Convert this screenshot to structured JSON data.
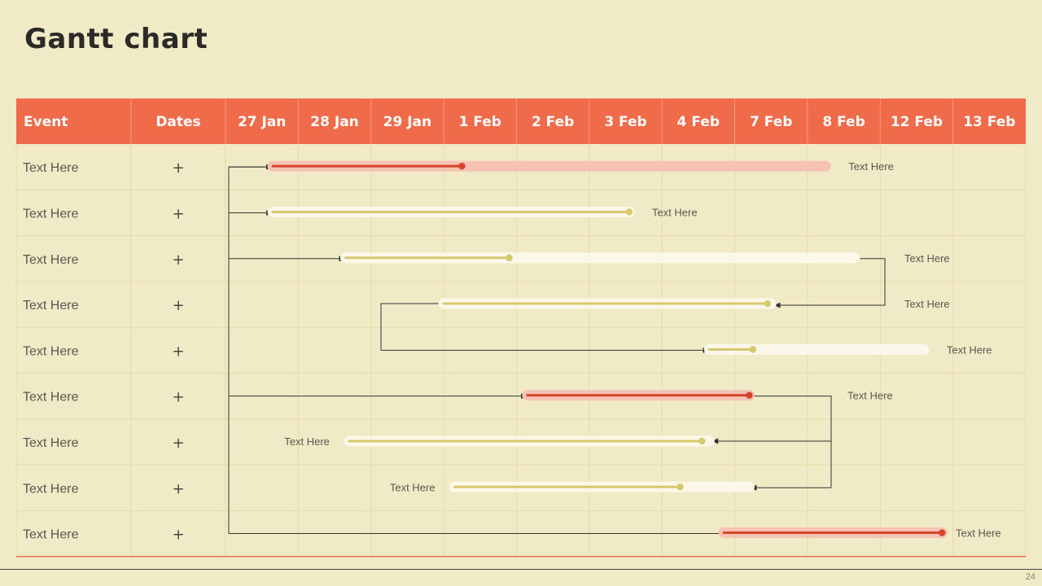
{
  "slide": {
    "title": "Gantt chart",
    "page_number": "24"
  },
  "colors": {
    "background": "#f1eac7",
    "header": "#ef6b4a",
    "grid": "#e5dca6",
    "red_bar": "#d6452a",
    "red_bar_light": "#f5c2b4",
    "yellow_bar": "#d7c86e",
    "track_light": "#fbf8ea",
    "connector": "#333333"
  },
  "chart_data": {
    "type": "gantt",
    "title": "Gantt chart",
    "columns": [
      "Event",
      "Dates"
    ],
    "date_columns": [
      "27 Jan",
      "28 Jan",
      "29 Jan",
      "1 Feb",
      "2 Feb",
      "3 Feb",
      "4 Feb",
      "7 Feb",
      "8 Feb",
      "12 Feb",
      "13 Feb"
    ],
    "rows": [
      {
        "event": "Text Here",
        "dates": "+",
        "label": "Text Here",
        "label_side": "right",
        "color": "red",
        "track": [
          0.65,
          8.25
        ],
        "progress": [
          0.65,
          3.25
        ]
      },
      {
        "event": "Text Here",
        "dates": "+",
        "label": "Text Here",
        "label_side": "right",
        "color": "yellow",
        "track": [
          0.65,
          5.55
        ],
        "progress": [
          0.65,
          5.55
        ]
      },
      {
        "event": "Text Here",
        "dates": "+",
        "label": "Text Here",
        "label_side": "right",
        "color": "yellow",
        "track": [
          1.65,
          8.65
        ],
        "progress": [
          1.65,
          3.9
        ]
      },
      {
        "event": "Text Here",
        "dates": "+",
        "label": "Text Here",
        "label_side": "right",
        "color": "yellow",
        "track": [
          3.0,
          7.5
        ],
        "progress": [
          3.0,
          7.45
        ]
      },
      {
        "event": "Text Here",
        "dates": "+",
        "label": "Text Here",
        "label_side": "right",
        "color": "yellow",
        "track": [
          6.65,
          9.6
        ],
        "progress": [
          6.65,
          7.25
        ]
      },
      {
        "event": "Text Here",
        "dates": "+",
        "label": "Text Here",
        "label_side": "right",
        "color": "red",
        "track": [
          4.15,
          7.2
        ],
        "progress": [
          4.15,
          7.2
        ]
      },
      {
        "event": "Text Here",
        "dates": "+",
        "label": "Text Here",
        "label_side": "left",
        "color": "yellow",
        "track": [
          1.7,
          6.65
        ],
        "progress": [
          1.7,
          6.55
        ]
      },
      {
        "event": "Text Here",
        "dates": "+",
        "label": "Text Here",
        "label_side": "left",
        "color": "yellow",
        "track": [
          3.15,
          7.2
        ],
        "progress": [
          3.15,
          6.25
        ]
      },
      {
        "event": "Text Here",
        "dates": "+",
        "label": "Text Here",
        "label_side": "right",
        "color": "red",
        "track": [
          6.85,
          9.85
        ],
        "progress": [
          6.85,
          9.85
        ]
      }
    ],
    "dependencies": [
      {
        "from_row": 0,
        "to_row": 1,
        "kind": "start"
      },
      {
        "from_row": 0,
        "to_row": 2,
        "kind": "start"
      },
      {
        "from_row": 0,
        "to_row": 5,
        "kind": "start"
      },
      {
        "from_row": 0,
        "to_row": 8,
        "kind": "start"
      },
      {
        "from_row": 2,
        "to_row": 3,
        "kind": "finish"
      },
      {
        "from_row": 3,
        "to_row": 4,
        "kind": "start"
      },
      {
        "from_row": 5,
        "to_row": 6,
        "kind": "finish"
      },
      {
        "from_row": 5,
        "to_row": 7,
        "kind": "finish"
      }
    ]
  }
}
